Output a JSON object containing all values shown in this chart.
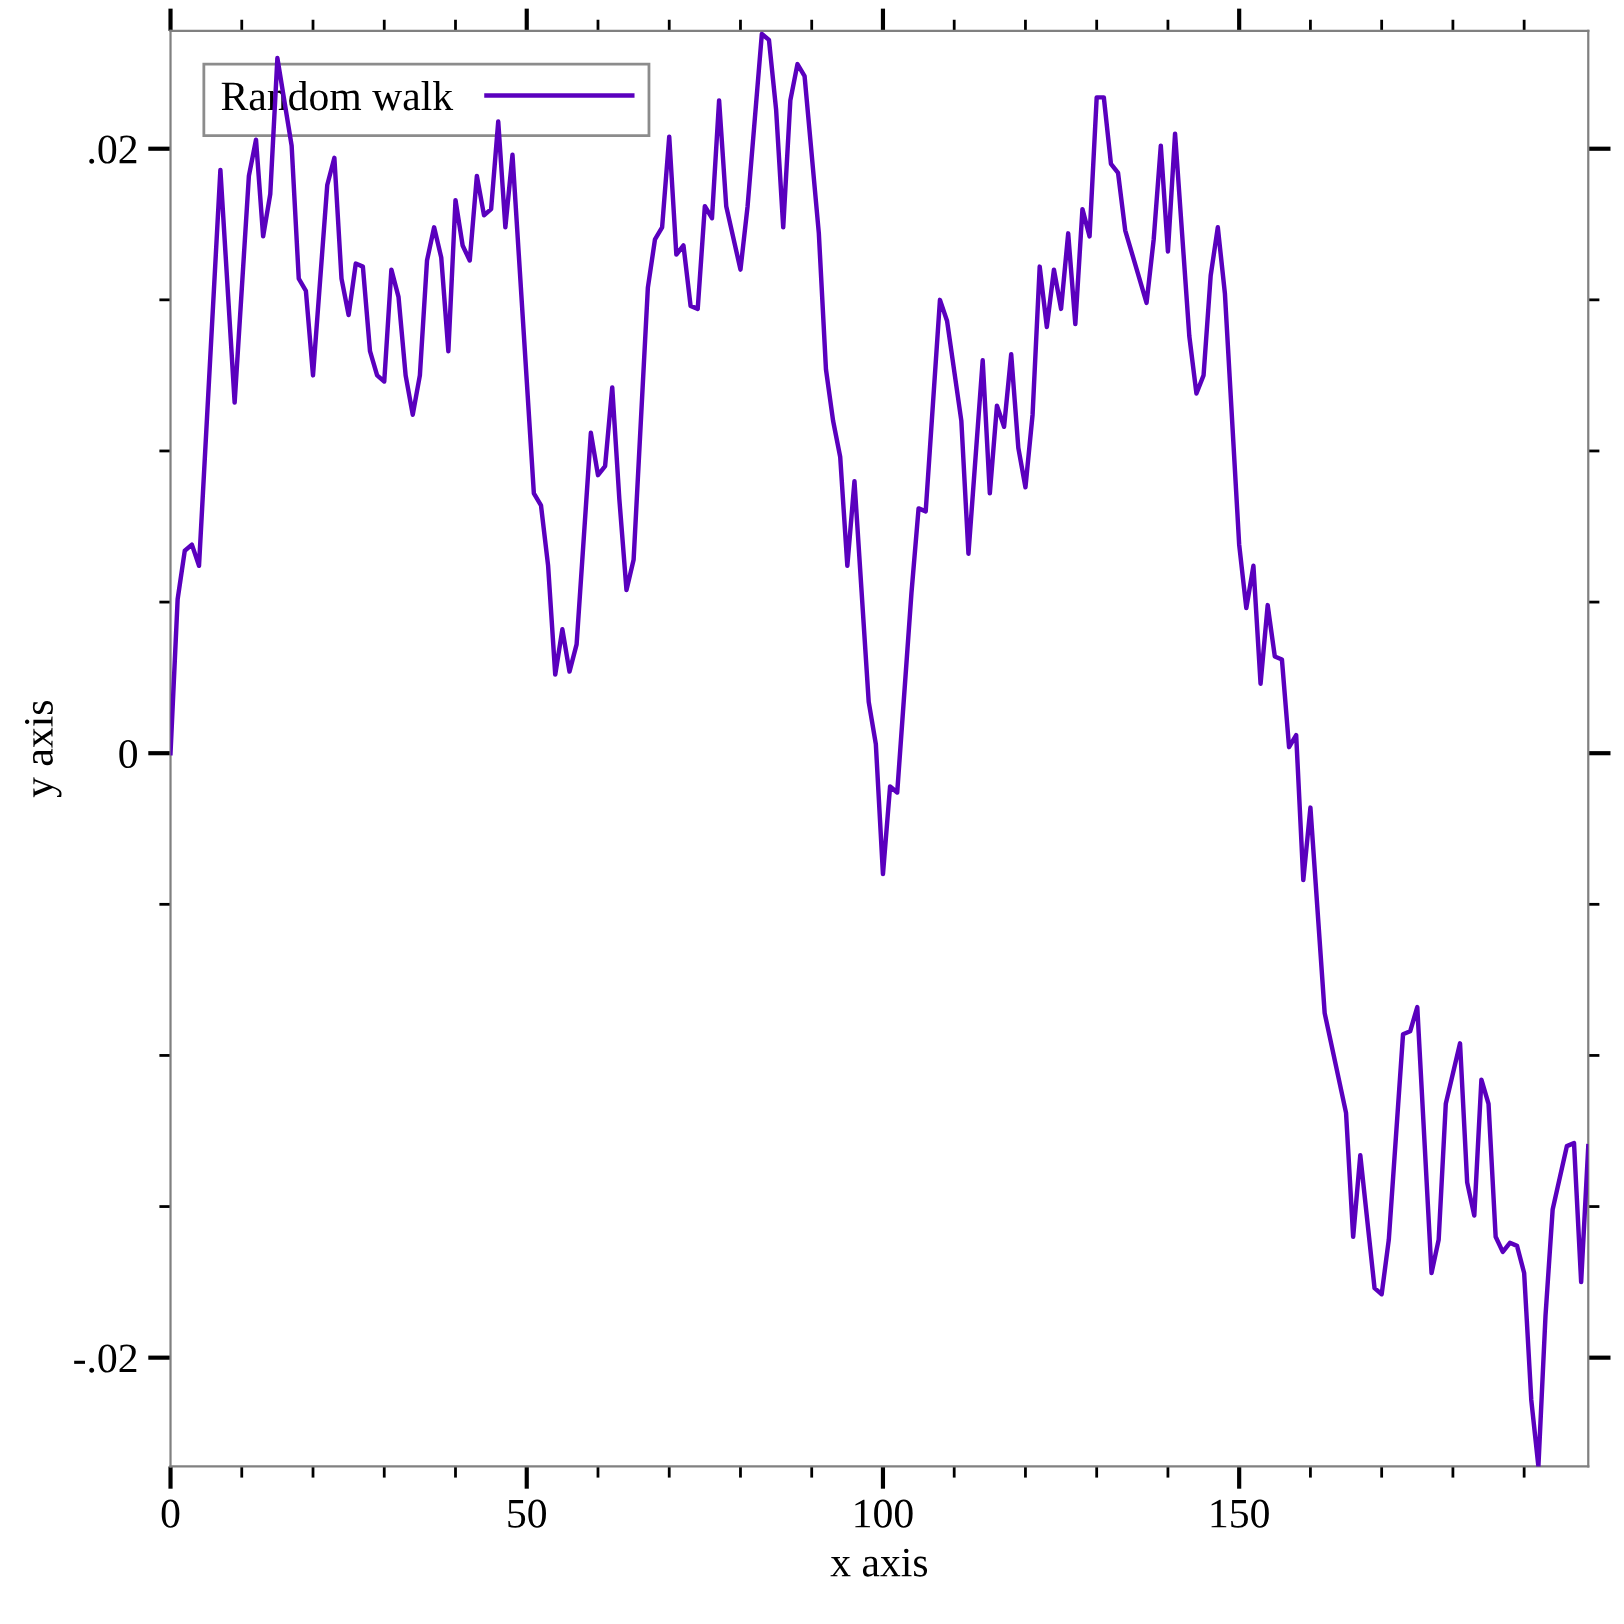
{
  "chart_data": {
    "type": "line",
    "xlabel": "x axis",
    "ylabel": "y axis",
    "xlim": [
      0,
      199
    ],
    "ylim": [
      -0.0236,
      0.0239
    ],
    "xticks": [
      0,
      {
        "value": 10,
        "label": null
      },
      {
        "value": 20,
        "label": null
      },
      {
        "value": 30,
        "label": null
      },
      {
        "value": 40,
        "label": null
      },
      50,
      {
        "value": 60,
        "label": null
      },
      {
        "value": 70,
        "label": null
      },
      {
        "value": 80,
        "label": null
      },
      {
        "value": 90,
        "label": null
      },
      100,
      {
        "value": 110,
        "label": null
      },
      {
        "value": 120,
        "label": null
      },
      {
        "value": 130,
        "label": null
      },
      {
        "value": 140,
        "label": null
      },
      150,
      {
        "value": 160,
        "label": null
      },
      {
        "value": 170,
        "label": null
      },
      {
        "value": 180,
        "label": null
      },
      {
        "value": 190,
        "label": null
      }
    ],
    "yticks": [
      {
        "value": -0.02,
        "label": "-.02"
      },
      {
        "value": -0.015,
        "label": null
      },
      {
        "value": -0.01,
        "label": null
      },
      {
        "value": -0.005,
        "label": null
      },
      0,
      {
        "value": 0.005,
        "label": null
      },
      {
        "value": 0.01,
        "label": null
      },
      {
        "value": 0.015,
        "label": null
      },
      {
        "value": 0.02,
        "label": ".02"
      }
    ],
    "grid": false,
    "legend": "top left",
    "marker": "none",
    "line_style": "solid",
    "series": [
      {
        "name": "Random walk",
        "color": "#5a00be",
        "x": [
          0,
          1,
          2,
          3,
          4,
          7,
          9,
          11,
          12,
          13,
          14,
          15,
          17,
          18,
          19,
          20,
          22,
          23,
          24,
          25,
          26,
          27,
          28,
          29,
          30,
          31,
          32,
          33,
          34,
          35,
          36,
          37,
          38,
          39,
          40,
          41,
          42,
          43,
          44,
          45,
          46,
          47,
          48,
          51,
          52,
          53,
          54,
          55,
          56,
          57,
          59,
          60,
          61,
          62,
          63,
          64,
          65,
          67,
          68,
          69,
          70,
          71,
          72,
          73,
          74,
          75,
          76,
          77,
          78,
          80,
          81,
          83,
          84,
          85,
          86,
          87,
          88,
          89,
          91,
          92,
          93,
          94,
          95,
          96,
          98,
          99,
          100,
          101,
          102,
          104,
          105,
          106,
          108,
          109,
          111,
          112,
          114,
          115,
          116,
          117,
          118,
          119,
          120,
          121,
          122,
          123,
          124,
          125,
          126,
          127,
          128,
          129,
          130,
          131,
          132,
          133,
          134,
          137,
          138,
          139,
          140,
          141,
          143,
          144,
          145,
          146,
          147,
          148,
          150,
          151,
          152,
          153,
          154,
          155,
          156,
          157,
          158,
          159,
          160,
          162,
          165,
          166,
          167,
          169,
          170,
          171,
          173,
          174,
          175,
          177,
          178,
          179,
          181,
          182,
          183,
          184,
          185,
          186,
          187,
          188,
          189,
          190,
          191,
          192,
          193,
          194,
          196,
          197,
          198,
          199
        ],
        "values": [
          0,
          0.0051,
          0.0067,
          0.0069,
          0.0062,
          0.0193,
          0.0116,
          0.0191,
          0.0203,
          0.0171,
          0.0185,
          0.023,
          0.0201,
          0.0157,
          0.0153,
          0.0125,
          0.0188,
          0.0197,
          0.0157,
          0.0145,
          0.0162,
          0.0161,
          0.0133,
          0.0125,
          0.0123,
          0.016,
          0.0151,
          0.0125,
          0.0112,
          0.0125,
          0.0163,
          0.0174,
          0.0164,
          0.0133,
          0.0183,
          0.0168,
          0.0163,
          0.0191,
          0.0178,
          0.018,
          0.0209,
          0.0174,
          0.0198,
          0.0086,
          0.0082,
          0.0062,
          0.0026,
          0.0041,
          0.0027,
          0.0036,
          0.0106,
          0.0092,
          0.0095,
          0.0121,
          0.0084,
          0.0054,
          0.0064,
          0.0154,
          0.017,
          0.0174,
          0.0204,
          0.0165,
          0.0168,
          0.0148,
          0.0147,
          0.0181,
          0.0177,
          0.0216,
          0.0181,
          0.016,
          0.0181,
          0.0238,
          0.0236,
          0.0213,
          0.0174,
          0.0216,
          0.0228,
          0.0224,
          0.0172,
          0.0127,
          0.011,
          0.0098,
          0.0062,
          0.009,
          0.0017,
          0.0003,
          -0.004,
          -0.0011,
          -0.0013,
          0.0053,
          0.0081,
          0.008,
          0.015,
          0.0143,
          0.011,
          0.0066,
          0.013,
          0.0086,
          0.0115,
          0.0108,
          0.0132,
          0.0101,
          0.0088,
          0.0112,
          0.0161,
          0.0141,
          0.016,
          0.0147,
          0.0172,
          0.0142,
          0.018,
          0.0171,
          0.0217,
          0.0217,
          0.0195,
          0.0192,
          0.0173,
          0.0149,
          0.017,
          0.0201,
          0.0166,
          0.0205,
          0.0138,
          0.0119,
          0.0125,
          0.0158,
          0.0174,
          0.0152,
          0.0069,
          0.0048,
          0.0062,
          0.0023,
          0.0049,
          0.0032,
          0.0031,
          0.0002,
          0.0006,
          -0.0042,
          -0.0018,
          -0.0086,
          -0.0119,
          -0.016,
          -0.0133,
          -0.0177,
          -0.0179,
          -0.0161,
          -0.0093,
          -0.0092,
          -0.0084,
          -0.0172,
          -0.0161,
          -0.0116,
          -0.0096,
          -0.0142,
          -0.0153,
          -0.0108,
          -0.0116,
          -0.016,
          -0.0165,
          -0.0162,
          -0.0163,
          -0.0172,
          -0.0214,
          -0.0236,
          -0.0186,
          -0.0151,
          -0.013,
          -0.0129,
          -0.0175,
          -0.013
        ]
      }
    ]
  }
}
